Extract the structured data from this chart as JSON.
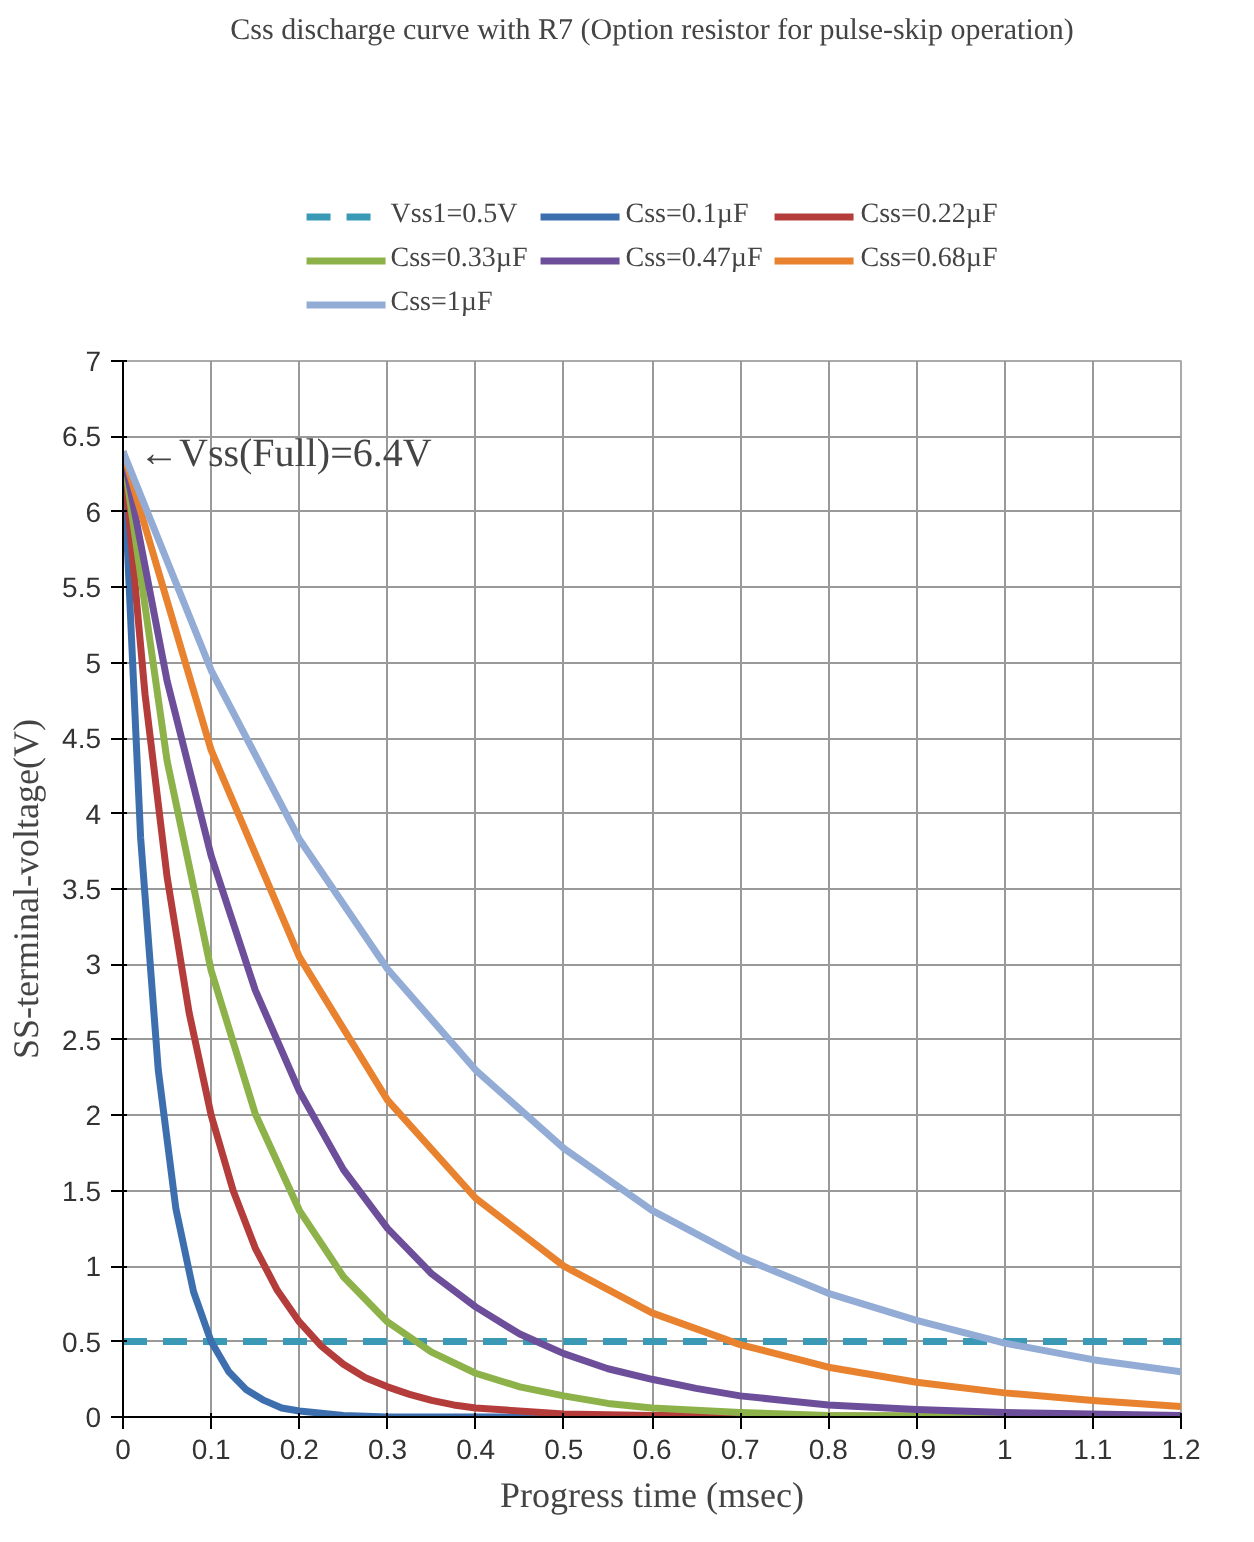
{
  "chart_data": {
    "type": "line",
    "title": "Css discharge curve with R7 (Option resistor for pulse-skip operation)",
    "xlabel": "Progress time (msec)",
    "ylabel": "SS-terminal-voltage(V)",
    "xlim": [
      0,
      1.2
    ],
    "ylim": [
      0,
      7
    ],
    "xticks": [
      0,
      0.1,
      0.2,
      0.3,
      0.4,
      0.5,
      0.6,
      0.7,
      0.8,
      0.9,
      1,
      1.1,
      1.2
    ],
    "yticks": [
      0,
      0.5,
      1,
      1.5,
      2,
      2.5,
      3,
      3.5,
      4,
      4.5,
      5,
      5.5,
      6,
      6.5,
      7
    ],
    "grid": true,
    "legend": "top",
    "marker": "none",
    "line_style": "solid",
    "annotations": [
      {
        "text": "←Vss(Full)=6.4V",
        "x": 0,
        "y": 6.4
      }
    ],
    "series": [
      {
        "name": "Vss1=0.5V",
        "color": "#3a9ab5",
        "line_style": "dashed",
        "x": [
          0,
          1.2
        ],
        "values": [
          0.5,
          0.5
        ]
      },
      {
        "name": "Css=0.1µF",
        "color": "#3d6faf",
        "x": [
          0,
          0.02,
          0.04,
          0.06,
          0.08,
          0.1,
          0.12,
          0.14,
          0.16,
          0.18,
          0.2,
          0.25,
          0.3,
          1.2
        ],
        "values": [
          6.4,
          3.84,
          2.3,
          1.38,
          0.83,
          0.5,
          0.3,
          0.18,
          0.11,
          0.06,
          0.04,
          0.01,
          0,
          0
        ]
      },
      {
        "name": "Css=0.22µF",
        "color": "#b43c3a",
        "x": [
          0,
          0.025,
          0.05,
          0.075,
          0.1,
          0.125,
          0.15,
          0.175,
          0.2,
          0.225,
          0.25,
          0.275,
          0.3,
          0.325,
          0.35,
          0.375,
          0.4,
          0.5,
          0.6,
          1.2
        ],
        "values": [
          6.4,
          4.79,
          3.58,
          2.68,
          2.0,
          1.5,
          1.12,
          0.84,
          0.63,
          0.47,
          0.35,
          0.26,
          0.2,
          0.15,
          0.11,
          0.08,
          0.06,
          0.02,
          0.01,
          0
        ]
      },
      {
        "name": "Css=0.33µF",
        "color": "#8db24a",
        "x": [
          0,
          0.05,
          0.1,
          0.15,
          0.2,
          0.25,
          0.3,
          0.35,
          0.4,
          0.45,
          0.5,
          0.55,
          0.6,
          0.7,
          0.8,
          1.2
        ],
        "values": [
          6.4,
          4.35,
          2.96,
          2.01,
          1.37,
          0.93,
          0.63,
          0.43,
          0.29,
          0.2,
          0.14,
          0.09,
          0.06,
          0.03,
          0.01,
          0
        ]
      },
      {
        "name": "Css=0.47µF",
        "color": "#6d4e9a",
        "x": [
          0,
          0.05,
          0.1,
          0.15,
          0.2,
          0.25,
          0.3,
          0.35,
          0.4,
          0.45,
          0.5,
          0.55,
          0.6,
          0.65,
          0.7,
          0.75,
          0.8,
          0.9,
          1.0,
          1.2
        ],
        "values": [
          6.4,
          4.88,
          3.72,
          2.83,
          2.16,
          1.64,
          1.25,
          0.95,
          0.73,
          0.55,
          0.42,
          0.32,
          0.25,
          0.19,
          0.14,
          0.11,
          0.08,
          0.05,
          0.03,
          0.01
        ]
      },
      {
        "name": "Css=0.68µF",
        "color": "#e8822f",
        "x": [
          0,
          0.1,
          0.2,
          0.3,
          0.4,
          0.5,
          0.6,
          0.7,
          0.8,
          0.9,
          1.0,
          1.1,
          1.2
        ],
        "values": [
          6.4,
          4.42,
          3.05,
          2.1,
          1.45,
          1.0,
          0.69,
          0.48,
          0.33,
          0.23,
          0.16,
          0.11,
          0.07
        ]
      },
      {
        "name": "Css=1µF",
        "color": "#93acd6",
        "x": [
          0,
          0.1,
          0.2,
          0.3,
          0.4,
          0.5,
          0.6,
          0.7,
          0.8,
          0.9,
          1.0,
          1.1,
          1.2
        ],
        "values": [
          6.4,
          4.95,
          3.83,
          2.97,
          2.3,
          1.78,
          1.37,
          1.06,
          0.82,
          0.64,
          0.49,
          0.38,
          0.3
        ]
      }
    ]
  }
}
